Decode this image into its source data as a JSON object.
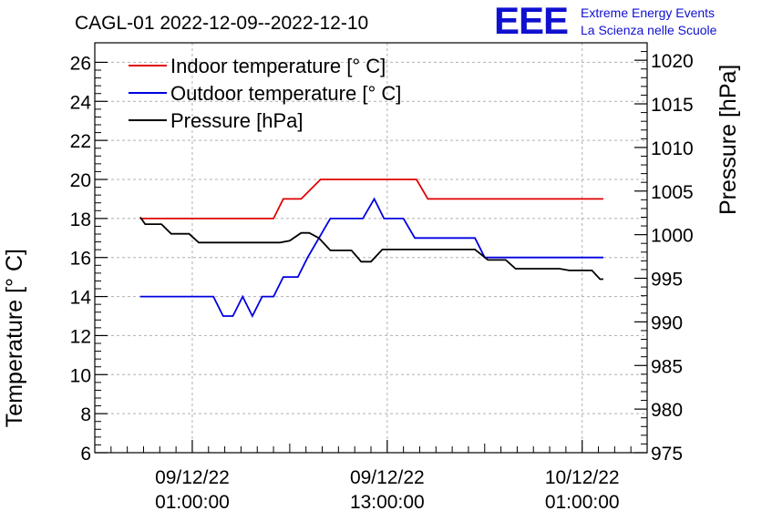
{
  "chart_data": {
    "type": "line",
    "title": "CAGL-01 2022-12-09--2022-12-10",
    "logo": {
      "mark": "EEE",
      "line1": "Extreme Energy Events",
      "line2": "La Scienza nelle Scuole",
      "color": "#1010d0"
    },
    "x_ticks": [
      {
        "t": 1,
        "date": "09/12/22",
        "time": "01:00:00"
      },
      {
        "t": 13,
        "date": "09/12/22",
        "time": "13:00:00"
      },
      {
        "t": 25,
        "date": "10/12/22",
        "time": "01:00:00"
      }
    ],
    "xlim": [
      -5,
      29
    ],
    "y_left": {
      "label": "Temperature [° C]",
      "lim": [
        6,
        27
      ],
      "ticks": [
        6,
        8,
        10,
        12,
        14,
        16,
        18,
        20,
        22,
        24,
        26
      ]
    },
    "y_right": {
      "label": "Pressure [hPa]",
      "lim": [
        975,
        1022
      ],
      "ticks": [
        975,
        980,
        985,
        990,
        995,
        1000,
        1005,
        1010,
        1015,
        1020
      ]
    },
    "grid": true,
    "legend_position": "top-left",
    "series": [
      {
        "name": "Indoor temperature [° C]",
        "axis": "left",
        "color": "#e00000",
        "points": [
          [
            -2.2,
            18
          ],
          [
            6.0,
            18
          ],
          [
            6.6,
            19
          ],
          [
            7.7,
            19
          ],
          [
            8.9,
            20
          ],
          [
            14.8,
            20
          ],
          [
            15.5,
            19
          ],
          [
            26.3,
            19
          ]
        ]
      },
      {
        "name": "Outdoor temperature [° C]",
        "axis": "left",
        "color": "#0000e0",
        "points": [
          [
            -2.2,
            14
          ],
          [
            2.3,
            14
          ],
          [
            2.9,
            13
          ],
          [
            3.5,
            13
          ],
          [
            4.1,
            14
          ],
          [
            4.7,
            13
          ],
          [
            5.3,
            14
          ],
          [
            6.0,
            14
          ],
          [
            6.6,
            15
          ],
          [
            7.5,
            15
          ],
          [
            8.1,
            16
          ],
          [
            9.5,
            18
          ],
          [
            11.5,
            18
          ],
          [
            12.2,
            19
          ],
          [
            12.8,
            18
          ],
          [
            14.0,
            18
          ],
          [
            14.7,
            17
          ],
          [
            18.4,
            17
          ],
          [
            19.0,
            16
          ],
          [
            26.3,
            16
          ]
        ]
      },
      {
        "name": "Pressure [hPa]",
        "axis": "right",
        "color": "#000000",
        "points": [
          [
            -2.2,
            1002
          ],
          [
            -1.9,
            1001.2
          ],
          [
            -0.9,
            1001.2
          ],
          [
            -0.3,
            1000.1
          ],
          [
            0.8,
            1000.1
          ],
          [
            1.4,
            999.1
          ],
          [
            6.4,
            999.1
          ],
          [
            7.0,
            999.3
          ],
          [
            7.7,
            1000.2
          ],
          [
            8.2,
            1000.2
          ],
          [
            8.8,
            999.6
          ],
          [
            9.5,
            998.2
          ],
          [
            10.8,
            998.2
          ],
          [
            11.4,
            996.9
          ],
          [
            12.0,
            996.9
          ],
          [
            12.7,
            998.3
          ],
          [
            18.4,
            998.3
          ],
          [
            19.2,
            997.1
          ],
          [
            20.3,
            997.1
          ],
          [
            20.9,
            996.1
          ],
          [
            23.6,
            996.1
          ],
          [
            24.2,
            995.9
          ],
          [
            25.6,
            995.9
          ],
          [
            26.1,
            994.9
          ],
          [
            26.3,
            994.9
          ]
        ]
      }
    ]
  }
}
